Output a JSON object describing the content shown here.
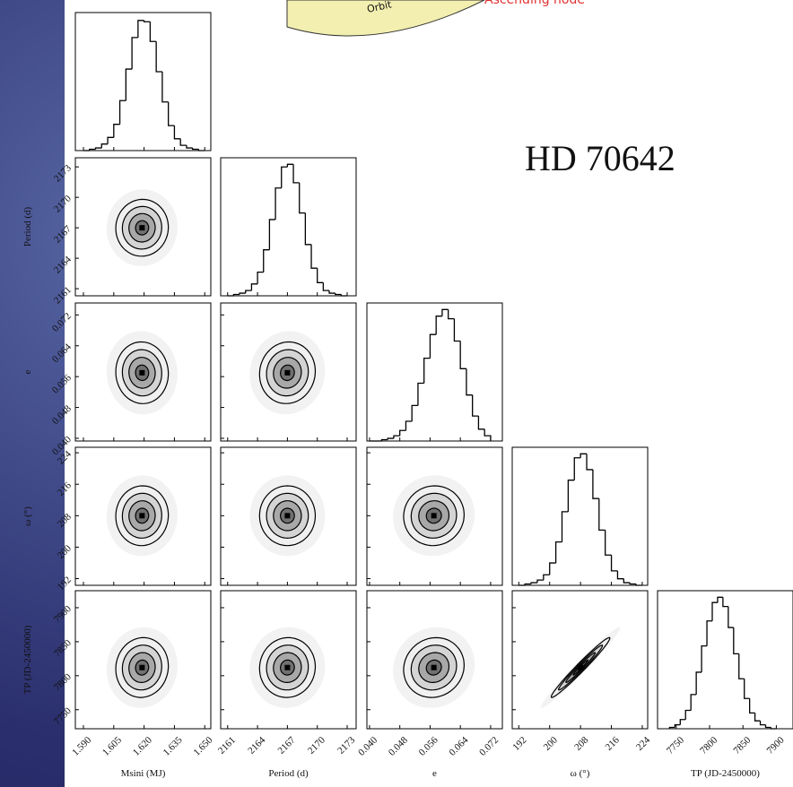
{
  "background_texts": {
    "orbit": "Orbit",
    "node": "Ascending node"
  },
  "chart_data": {
    "type": "corner",
    "title": "HD 70642",
    "contour_sigmas": [
      0.5,
      1,
      1.5,
      2
    ],
    "hist_ylim": [
      0,
      105
    ],
    "params": [
      {
        "label": "Msini (MJ)",
        "lim": [
          1.586,
          1.653
        ],
        "ticks": [
          {
            "value": 1.59,
            "label": "1.590"
          },
          1.605,
          {
            "value": 1.62,
            "label": "1.620"
          },
          1.635,
          {
            "value": 1.65,
            "label": "1.650"
          }
        ],
        "mean": 1.619,
        "std": 0.0065,
        "bins": [
          1.59,
          1.593,
          1.596,
          1.599,
          1.602,
          1.605,
          1.608,
          1.611,
          1.614,
          1.617,
          1.62,
          1.623,
          1.626,
          1.629,
          1.632,
          1.635,
          1.638,
          1.641,
          1.644,
          1.647,
          1.65
        ],
        "counts": [
          0,
          1,
          2,
          5,
          10,
          20,
          38,
          62,
          86,
          99,
          98,
          83,
          60,
          37,
          19,
          9,
          4,
          2,
          1,
          0
        ]
      },
      {
        "label": "Period (d)",
        "lim": [
          2160.3,
          2173.9
        ],
        "ticks": [
          2161,
          2164,
          2167,
          2170,
          2173
        ],
        "mean": 2167,
        "std": 1.4,
        "bins": [
          2161,
          2161.6,
          2162.2,
          2162.8,
          2163.4,
          2164,
          2164.6,
          2165.2,
          2165.8,
          2166.4,
          2167,
          2167.6,
          2168.2,
          2168.8,
          2169.4,
          2170,
          2170.6,
          2171.2,
          2171.8,
          2172.4,
          2173
        ],
        "counts": [
          0,
          1,
          2,
          4,
          9,
          18,
          35,
          58,
          82,
          98,
          100,
          86,
          63,
          39,
          21,
          10,
          4,
          2,
          1,
          0
        ]
      },
      {
        "label": "e",
        "lim": [
          0.0393,
          0.0751
        ],
        "ticks": [
          {
            "value": 0.04,
            "label": "0.040"
          },
          0.048,
          0.056,
          0.064,
          0.072
        ],
        "mean": 0.057,
        "std": 0.004,
        "bins": [
          0.04,
          0.0416,
          0.0432,
          0.0448,
          0.0464,
          0.048,
          0.0496,
          0.0512,
          0.0528,
          0.0544,
          0.056,
          0.0576,
          0.0592,
          0.0608,
          0.0624,
          0.064,
          0.0656,
          0.0672,
          0.0688,
          0.0704,
          0.072
        ],
        "counts": [
          0,
          0,
          1,
          2,
          4,
          8,
          15,
          27,
          44,
          63,
          81,
          95,
          100,
          93,
          76,
          55,
          35,
          19,
          9,
          4
        ]
      },
      {
        "label": "ω (°)",
        "lim": [
          190.3,
          225.4
        ],
        "ticks": [
          192,
          200,
          208,
          216,
          224
        ],
        "mean": 208,
        "std": 3.8,
        "bins": [
          192,
          193.6,
          195.2,
          196.8,
          198.4,
          200,
          201.6,
          203.2,
          204.8,
          206.4,
          208,
          209.6,
          211.2,
          212.8,
          214.4,
          216,
          217.6,
          219.2,
          220.8,
          222.4,
          224
        ],
        "counts": [
          0,
          1,
          2,
          4,
          8,
          17,
          33,
          56,
          80,
          97,
          100,
          88,
          66,
          42,
          23,
          11,
          5,
          2,
          1,
          0
        ]
      },
      {
        "label": "TP (JD-2450000)",
        "lim": [
          7722,
          7925
        ],
        "ticks": [
          7750,
          7800,
          7850,
          7900
        ],
        "mean": 7812,
        "std": 22,
        "bins": [
          7740,
          7748,
          7756,
          7764,
          7772,
          7780,
          7788,
          7796,
          7804,
          7812,
          7820,
          7828,
          7836,
          7844,
          7852,
          7860,
          7868,
          7876,
          7884,
          7892,
          7900
        ],
        "counts": [
          1,
          3,
          7,
          14,
          26,
          43,
          63,
          82,
          96,
          100,
          93,
          77,
          57,
          38,
          23,
          12,
          6,
          3,
          1,
          0
        ]
      }
    ],
    "correlations": [
      [
        0.02
      ],
      [
        -0.03,
        0.05
      ],
      [
        0.02,
        0.0,
        0.03
      ],
      [
        0.05,
        0.03,
        0.08,
        0.98
      ]
    ]
  }
}
